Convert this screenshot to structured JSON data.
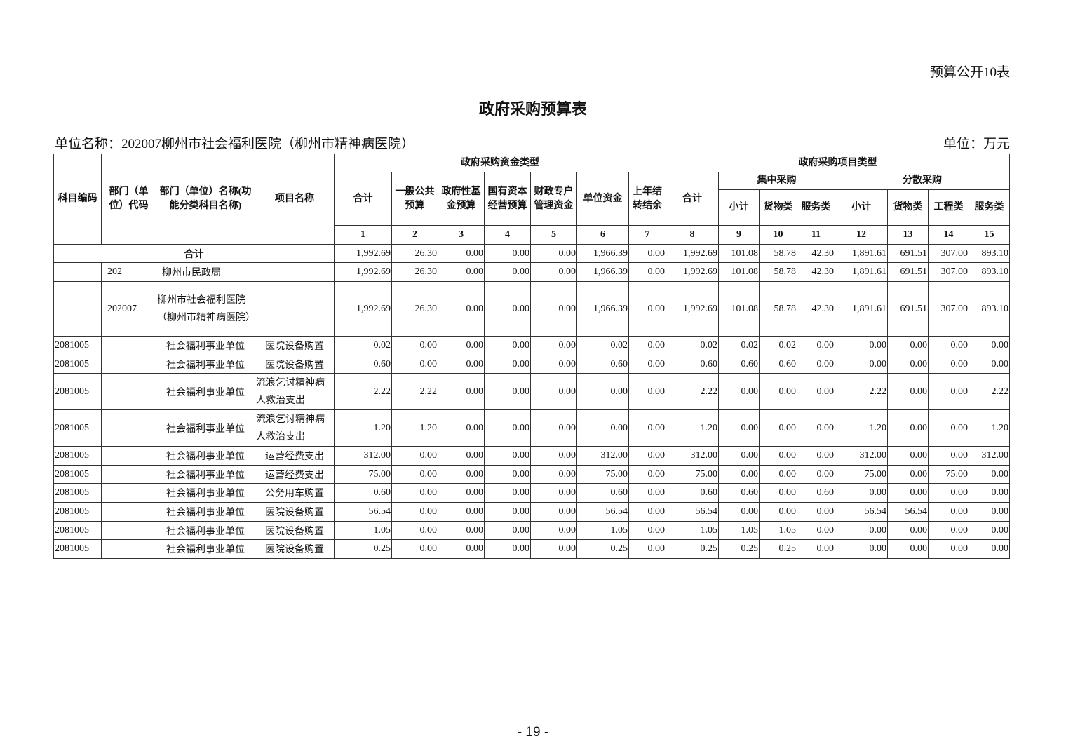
{
  "table_tag": "预算公开10表",
  "title": "政府采购预算表",
  "unit_name": "单位名称：202007柳州市社会福利医院（柳州市精神病医院）",
  "unit": "单位：万元",
  "headers": {
    "subject_code": "科目编码",
    "dept_code": "部门（单位）代码",
    "dept_name": "部门（单位）名称(功能分类科目名称)",
    "project_name": "项目名称",
    "fund_group": "政府采购资金类型",
    "project_group": "政府采购项目类型",
    "fund_cols": [
      "合计",
      "一般公共预算",
      "政府性基金预算",
      "国有资本经营预算",
      "财政专户管理资金",
      "单位资金",
      "上年结转结余"
    ],
    "proj_total": "合计",
    "central": "集中采购",
    "central_cols": [
      "小计",
      "货物类",
      "服务类"
    ],
    "dispersed": "分散采购",
    "dispersed_cols": [
      "小计",
      "货物类",
      "工程类",
      "服务类"
    ],
    "numbers": [
      "1",
      "2",
      "3",
      "4",
      "5",
      "6",
      "7",
      "8",
      "9",
      "10",
      "11",
      "12",
      "13",
      "14",
      "15"
    ]
  },
  "total_row": {
    "label": "合计",
    "values": [
      "1,992.69",
      "26.30",
      "0.00",
      "0.00",
      "0.00",
      "1,966.39",
      "0.00",
      "1,992.69",
      "101.08",
      "58.78",
      "42.30",
      "1,891.61",
      "691.51",
      "307.00",
      "893.10"
    ]
  },
  "rows": [
    {
      "code": "",
      "dept_code": "202",
      "name": "柳州市民政局",
      "project": "",
      "values": [
        "1,992.69",
        "26.30",
        "0.00",
        "0.00",
        "0.00",
        "1,966.39",
        "0.00",
        "1,992.69",
        "101.08",
        "58.78",
        "42.30",
        "1,891.61",
        "691.51",
        "307.00",
        "893.10"
      ]
    },
    {
      "code": "",
      "dept_code": "202007",
      "name": "柳州市社会福利医院（柳州市精神病医院）",
      "project": "",
      "values": [
        "1,992.69",
        "26.30",
        "0.00",
        "0.00",
        "0.00",
        "1,966.39",
        "0.00",
        "1,992.69",
        "101.08",
        "58.78",
        "42.30",
        "1,891.61",
        "691.51",
        "307.00",
        "893.10"
      ]
    },
    {
      "code": "2081005",
      "dept_code": "",
      "name": "社会福利事业单位",
      "project": "医院设备购置",
      "values": [
        "0.02",
        "0.00",
        "0.00",
        "0.00",
        "0.00",
        "0.02",
        "0.00",
        "0.02",
        "0.02",
        "0.02",
        "0.00",
        "0.00",
        "0.00",
        "0.00",
        "0.00"
      ]
    },
    {
      "code": "2081005",
      "dept_code": "",
      "name": "社会福利事业单位",
      "project": "医院设备购置",
      "values": [
        "0.60",
        "0.00",
        "0.00",
        "0.00",
        "0.00",
        "0.60",
        "0.00",
        "0.60",
        "0.60",
        "0.60",
        "0.00",
        "0.00",
        "0.00",
        "0.00",
        "0.00"
      ]
    },
    {
      "code": "2081005",
      "dept_code": "",
      "name": "社会福利事业单位",
      "project": "流浪乞讨精神病人救治支出",
      "values": [
        "2.22",
        "2.22",
        "0.00",
        "0.00",
        "0.00",
        "0.00",
        "0.00",
        "2.22",
        "0.00",
        "0.00",
        "0.00",
        "2.22",
        "0.00",
        "0.00",
        "2.22"
      ]
    },
    {
      "code": "2081005",
      "dept_code": "",
      "name": "社会福利事业单位",
      "project": "流浪乞讨精神病人救治支出",
      "values": [
        "1.20",
        "1.20",
        "0.00",
        "0.00",
        "0.00",
        "0.00",
        "0.00",
        "1.20",
        "0.00",
        "0.00",
        "0.00",
        "1.20",
        "0.00",
        "0.00",
        "1.20"
      ]
    },
    {
      "code": "2081005",
      "dept_code": "",
      "name": "社会福利事业单位",
      "project": "运营经费支出",
      "values": [
        "312.00",
        "0.00",
        "0.00",
        "0.00",
        "0.00",
        "312.00",
        "0.00",
        "312.00",
        "0.00",
        "0.00",
        "0.00",
        "312.00",
        "0.00",
        "0.00",
        "312.00"
      ]
    },
    {
      "code": "2081005",
      "dept_code": "",
      "name": "社会福利事业单位",
      "project": "运营经费支出",
      "values": [
        "75.00",
        "0.00",
        "0.00",
        "0.00",
        "0.00",
        "75.00",
        "0.00",
        "75.00",
        "0.00",
        "0.00",
        "0.00",
        "75.00",
        "0.00",
        "75.00",
        "0.00"
      ]
    },
    {
      "code": "2081005",
      "dept_code": "",
      "name": "社会福利事业单位",
      "project": "公务用车购置",
      "values": [
        "0.60",
        "0.00",
        "0.00",
        "0.00",
        "0.00",
        "0.60",
        "0.00",
        "0.60",
        "0.60",
        "0.00",
        "0.60",
        "0.00",
        "0.00",
        "0.00",
        "0.00"
      ]
    },
    {
      "code": "2081005",
      "dept_code": "",
      "name": "社会福利事业单位",
      "project": "医院设备购置",
      "values": [
        "56.54",
        "0.00",
        "0.00",
        "0.00",
        "0.00",
        "56.54",
        "0.00",
        "56.54",
        "0.00",
        "0.00",
        "0.00",
        "56.54",
        "56.54",
        "0.00",
        "0.00"
      ]
    },
    {
      "code": "2081005",
      "dept_code": "",
      "name": "社会福利事业单位",
      "project": "医院设备购置",
      "values": [
        "1.05",
        "0.00",
        "0.00",
        "0.00",
        "0.00",
        "1.05",
        "0.00",
        "1.05",
        "1.05",
        "1.05",
        "0.00",
        "0.00",
        "0.00",
        "0.00",
        "0.00"
      ]
    },
    {
      "code": "2081005",
      "dept_code": "",
      "name": "社会福利事业单位",
      "project": "医院设备购置",
      "values": [
        "0.25",
        "0.00",
        "0.00",
        "0.00",
        "0.00",
        "0.25",
        "0.00",
        "0.25",
        "0.25",
        "0.25",
        "0.00",
        "0.00",
        "0.00",
        "0.00",
        "0.00"
      ]
    }
  ],
  "page_number": "- 19 -"
}
